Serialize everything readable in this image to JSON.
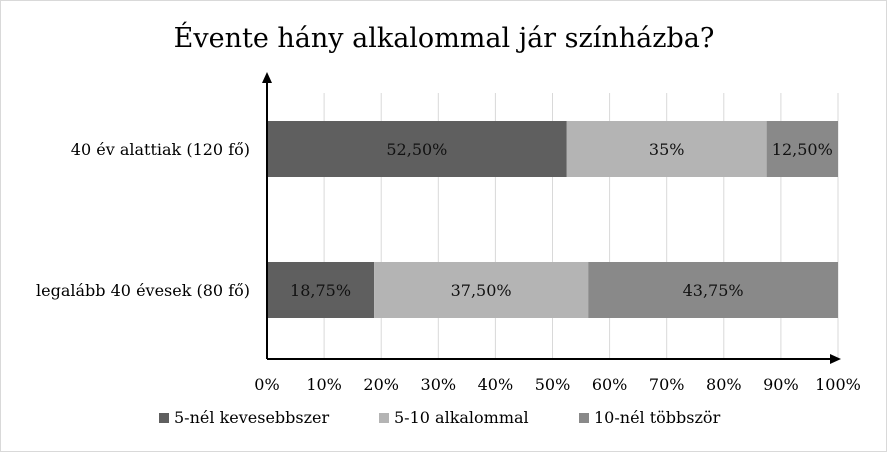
{
  "chart_data": {
    "type": "bar",
    "orientation": "horizontal",
    "stacked": "percent",
    "title": "Évente hány alkalommal jár színházba?",
    "categories": [
      "40 év alattiak (120 fő)",
      "legalább 40 évesek (80 fő)"
    ],
    "series": [
      {
        "name": "5-nél kevesebbszer",
        "color": "#5f5f5f",
        "values": [
          52.5,
          18.75
        ],
        "labels": [
          "52,50%",
          "18,75%"
        ]
      },
      {
        "name": "5-10 alkalommal",
        "color": "#b4b4b4",
        "values": [
          35,
          37.5
        ],
        "labels": [
          "35%",
          "37,50%"
        ]
      },
      {
        "name": "10-nél többször",
        "color": "#898989",
        "values": [
          12.5,
          43.75
        ],
        "labels": [
          "12,50%",
          "43,75%"
        ]
      }
    ],
    "xlim": [
      0,
      100
    ],
    "x_ticks": [
      "0%",
      "10%",
      "20%",
      "30%",
      "40%",
      "50%",
      "60%",
      "70%",
      "80%",
      "90%",
      "100%"
    ],
    "grid": "vertical",
    "legend": "bottom"
  }
}
